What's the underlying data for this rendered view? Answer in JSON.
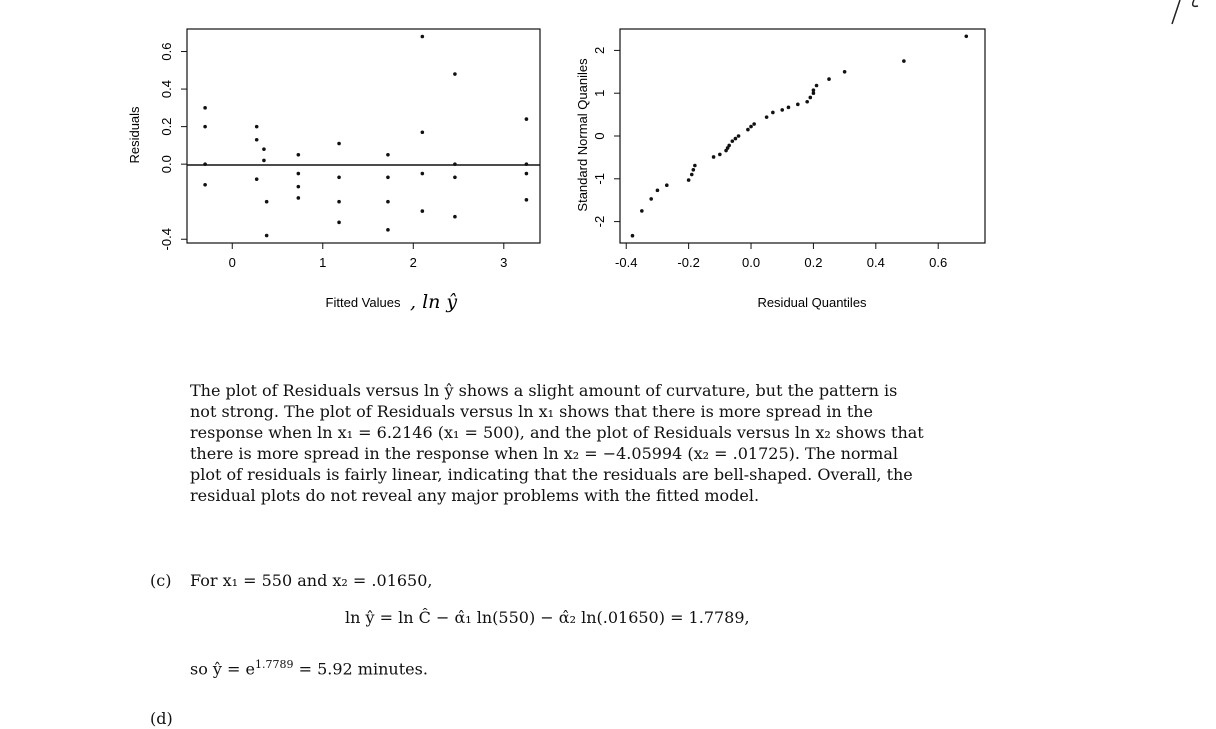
{
  "charts": {
    "residual_plot": {
      "xlabel": "Fitted Values",
      "xlabel_handwritten": ", ln ŷ",
      "ylabel": "Residuals"
    },
    "qq_plot": {
      "xlabel": "Residual Quantiles",
      "ylabel": "Standard Normal Quaniles"
    }
  },
  "chart_data": [
    {
      "type": "scatter",
      "xlabel": "Fitted Values , ln ŷ",
      "ylabel": "Residuals",
      "xlim": [
        -0.5,
        3.4
      ],
      "ylim": [
        -0.42,
        0.72
      ],
      "x_ticks": [
        "0",
        "1",
        "2",
        "3"
      ],
      "y_ticks": [
        "-0.4",
        "0.0",
        "0.2",
        "0.4",
        "0.6"
      ],
      "reference_line_y": 0,
      "grid": false,
      "x": [
        -0.3,
        -0.3,
        -0.3,
        -0.3,
        0.27,
        0.27,
        0.27,
        0.35,
        0.35,
        0.38,
        0.38,
        0.73,
        0.73,
        0.73,
        0.73,
        1.18,
        1.18,
        1.18,
        1.18,
        1.72,
        1.72,
        1.72,
        1.72,
        2.1,
        2.1,
        2.1,
        2.1,
        2.46,
        2.46,
        2.46,
        2.46,
        3.25,
        3.25,
        3.25,
        3.25
      ],
      "y": [
        0.3,
        0.2,
        0.0,
        -0.11,
        0.2,
        0.13,
        -0.08,
        0.08,
        0.02,
        -0.2,
        -0.38,
        0.05,
        -0.05,
        -0.12,
        -0.18,
        0.11,
        -0.07,
        -0.2,
        -0.31,
        0.05,
        -0.07,
        -0.2,
        -0.35,
        0.68,
        0.17,
        -0.05,
        -0.25,
        0.48,
        0.0,
        -0.07,
        -0.28,
        0.24,
        0.0,
        -0.05,
        -0.19
      ]
    },
    {
      "type": "scatter",
      "xlabel": "Residual Quantiles",
      "ylabel": "Standard Normal Quaniles",
      "xlim": [
        -0.42,
        0.75
      ],
      "ylim": [
        -2.5,
        2.5
      ],
      "x_ticks": [
        "-0.4",
        "-0.2",
        "0.0",
        "0.2",
        "0.4",
        "0.6"
      ],
      "y_ticks": [
        "-2",
        "-1",
        "0",
        "1",
        "2"
      ],
      "grid": false,
      "x": [
        -0.38,
        -0.35,
        -0.32,
        -0.3,
        -0.27,
        -0.2,
        -0.19,
        -0.185,
        -0.18,
        -0.12,
        -0.1,
        -0.08,
        -0.075,
        -0.07,
        -0.06,
        -0.05,
        -0.04,
        -0.01,
        0.0,
        0.01,
        0.05,
        0.07,
        0.1,
        0.12,
        0.15,
        0.18,
        0.19,
        0.2,
        0.2,
        0.21,
        0.25,
        0.3,
        0.49,
        0.69
      ],
      "y": [
        -2.33,
        -1.75,
        -1.47,
        -1.27,
        -1.15,
        -1.03,
        -0.9,
        -0.79,
        -0.69,
        -0.49,
        -0.43,
        -0.34,
        -0.28,
        -0.22,
        -0.12,
        -0.06,
        0.0,
        0.15,
        0.22,
        0.28,
        0.44,
        0.55,
        0.61,
        0.67,
        0.74,
        0.8,
        0.9,
        1.0,
        1.07,
        1.18,
        1.33,
        1.5,
        1.75,
        2.33
      ]
    }
  ],
  "paragraph": {
    "lines": [
      "The plot of Residuals versus ln ŷ shows a slight amount of curvature, but the pattern is",
      "not strong. The plot of Residuals versus ln x₁ shows that there is more spread in the",
      "response when ln x₁ = 6.2146 (x₁ = 500), and the plot of Residuals versus ln x₂ shows that",
      "there is more spread in the response when ln x₂ = −4.05994 (x₂ = .01725). The normal",
      "plot of residuals is fairly linear, indicating that the residuals are bell-shaped. Overall, the",
      "residual plots do not reveal any major problems with the fitted model."
    ]
  },
  "part_c": {
    "label": "(c)",
    "intro": "For x₁ = 550 and x₂ = .01650,",
    "equation": "ln ŷ = ln Ĉ − α̂₁ ln(550) − α̂₂ ln(.01650) = 1.7789,",
    "result_prefix": "so ŷ = e",
    "result_exponent": "1.7789",
    "result_suffix": " = 5.92 minutes."
  },
  "part_d": {
    "label": "(d)"
  }
}
